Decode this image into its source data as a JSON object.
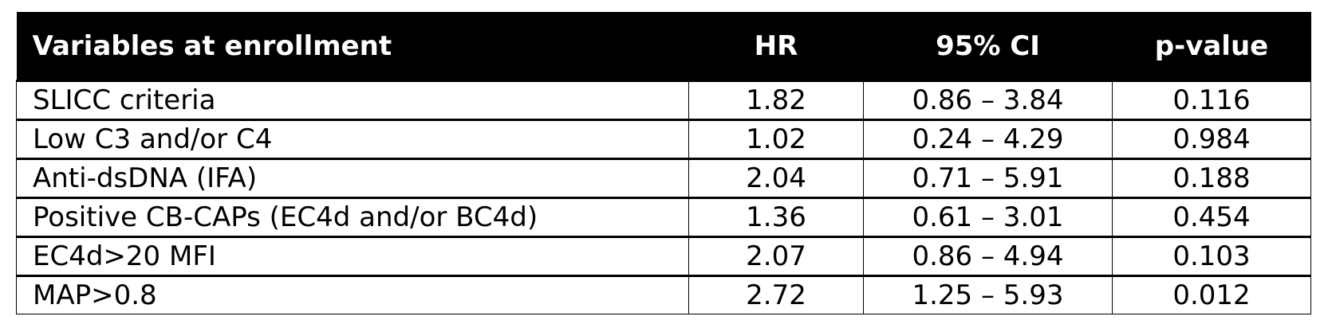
{
  "table": {
    "headers": [
      "Variables at enrollment",
      "HR",
      "95% CI",
      "p-value"
    ],
    "rows": [
      [
        "SLICC criteria",
        "1.82",
        "0.86 – 3.84",
        "0.116"
      ],
      [
        "Low C3 and/or C4",
        "1.02",
        "0.24 – 4.29",
        "0.984"
      ],
      [
        "Anti-dsDNA (IFA)",
        "2.04",
        "0.71 – 5.91",
        "0.188"
      ],
      [
        "Positive CB-CAPs (EC4d and/or BC4d)",
        "1.36",
        "0.61 – 3.01",
        "0.454"
      ],
      [
        "EC4d>20 MFI",
        "2.07",
        "0.86 – 4.94",
        "0.103"
      ],
      [
        "MAP>0.8",
        "2.72",
        "1.25 – 5.93",
        "0.012"
      ]
    ]
  },
  "colors": {
    "header_bg": "#000000",
    "header_text": "#ffffff"
  }
}
